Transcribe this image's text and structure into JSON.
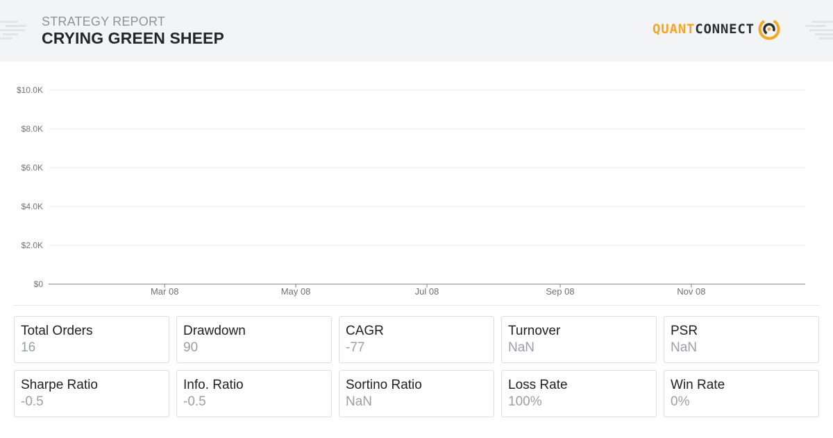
{
  "header": {
    "subtitle": "STRATEGY REPORT",
    "title": "CRYING GREEN SHEEP",
    "logo_part1": "QUANT",
    "logo_part2": "CONNECT",
    "logo_icon": "quantconnect-logo-icon",
    "colors": {
      "accent": "#f5a623",
      "dark": "#2a2d33",
      "background": "#f3f4f6"
    }
  },
  "chart_data": {
    "type": "line",
    "title": "",
    "xlabel": "",
    "ylabel": "",
    "y_ticks": [
      "$0",
      "$2.0K",
      "$4.0K",
      "$6.0K",
      "$8.0K",
      "$10.0K"
    ],
    "ylim": [
      0,
      10000
    ],
    "x_ticks": [
      "Mar 08",
      "May 08",
      "Jul 08",
      "Sep 08",
      "Nov 08"
    ],
    "x_tick_dates": [
      "2008-03-08",
      "2008-05-08",
      "2008-07-08",
      "2008-09-08",
      "2008-11-08"
    ],
    "xlim": [
      "2008-01-14",
      "2008-12-31"
    ],
    "grid": true,
    "series": [
      {
        "values": []
      }
    ]
  },
  "metrics": [
    {
      "label": "Total Orders",
      "value": "16"
    },
    {
      "label": "Drawdown",
      "value": "90"
    },
    {
      "label": "CAGR",
      "value": "-77"
    },
    {
      "label": "Turnover",
      "value": "NaN"
    },
    {
      "label": "PSR",
      "value": "NaN"
    },
    {
      "label": "Sharpe Ratio",
      "value": "-0.5"
    },
    {
      "label": "Info. Ratio",
      "value": "-0.5"
    },
    {
      "label": "Sortino Ratio",
      "value": "NaN"
    },
    {
      "label": "Loss Rate",
      "value": "100%"
    },
    {
      "label": "Win Rate",
      "value": "0%"
    }
  ]
}
